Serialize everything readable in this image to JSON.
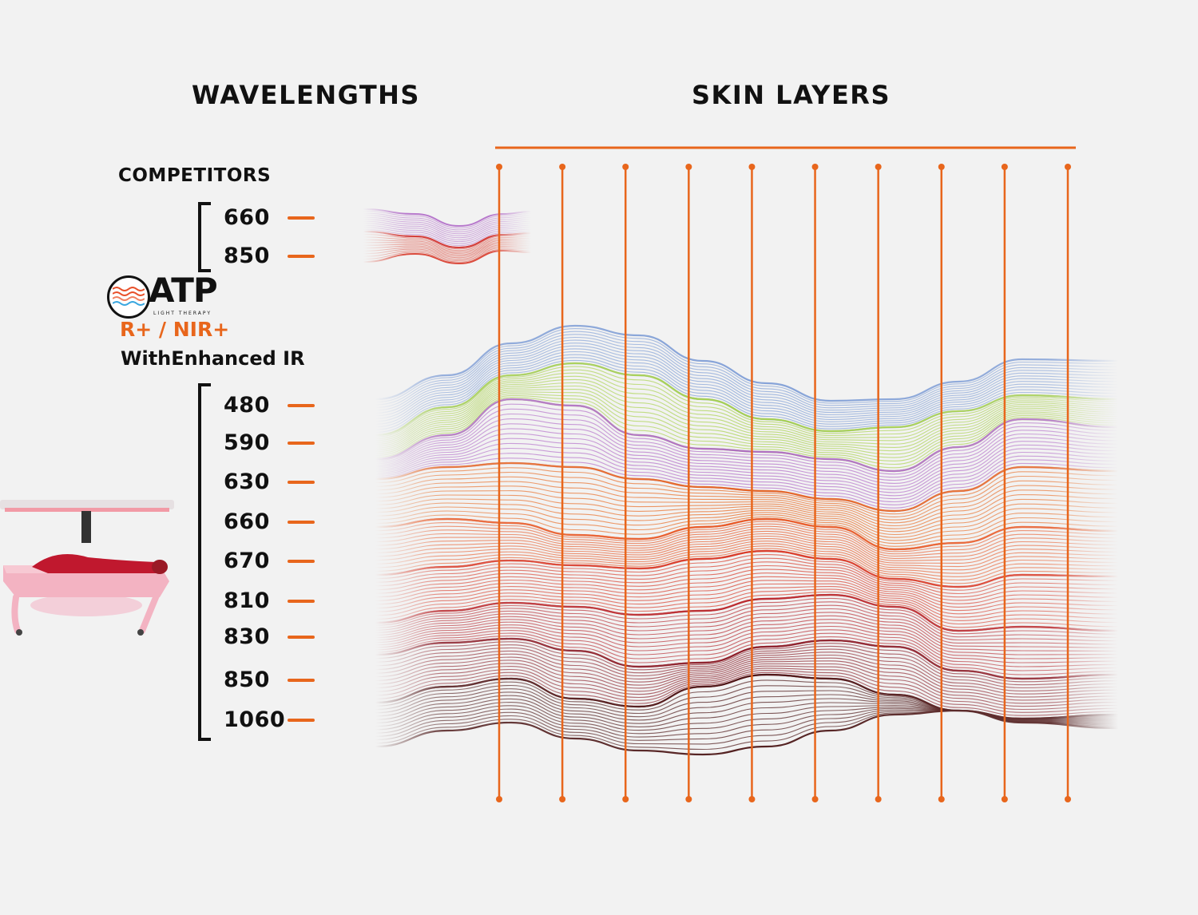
{
  "headings": {
    "wavelengths": "WAVELENGTHS",
    "skin_layers": "SKIN LAYERS"
  },
  "competitors": {
    "label": "COMPETITORS",
    "wavelengths": [
      "660",
      "850"
    ]
  },
  "brand": {
    "logo_text": "ATP",
    "logo_tagline": "LIGHT THERAPY",
    "spectrum_label": "R+ / NIR+",
    "enhanced_label": "WithEnhanced IR",
    "wavelengths": [
      "480",
      "590",
      "630",
      "660",
      "670",
      "810",
      "830",
      "850",
      "1060"
    ]
  },
  "skin_layers": {
    "layer_line_count": 10
  },
  "colors": {
    "accent": "#e8661c",
    "text": "#111111",
    "background": "#f2f2f2",
    "band_480": "#7f9ed6",
    "band_590": "#a8d24a",
    "band_630": "#b06ac8",
    "band_660": "#e8661c",
    "band_670": "#e85a2a",
    "band_810": "#d83a2a",
    "band_830": "#b82a30",
    "band_850": "#8a1f2a",
    "band_1060": "#4a1414"
  },
  "icons": {
    "logo": "wave-logo-icon",
    "device": "light-therapy-bed-icon"
  }
}
